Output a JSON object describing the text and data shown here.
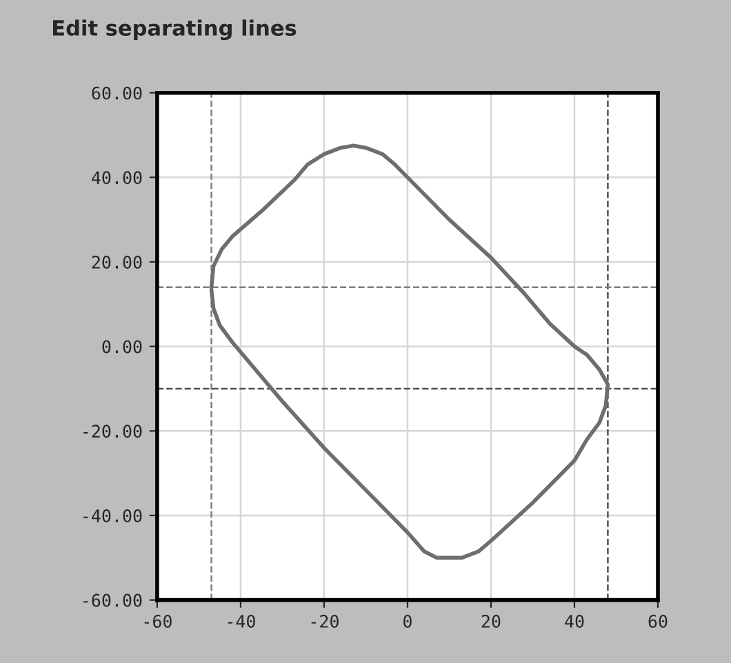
{
  "chart_data": {
    "type": "line",
    "title": "Edit separating lines",
    "series": [
      {
        "color": "#6e6e6e",
        "x": [
          -47,
          -46.5,
          -44.5,
          -42,
          -35,
          -27,
          -24,
          -20,
          -16,
          -13,
          -10,
          -6,
          -3,
          0,
          10,
          20,
          28,
          34,
          40,
          43,
          46,
          48,
          47.5,
          46,
          43,
          40,
          30,
          20,
          17,
          13,
          7,
          4,
          0,
          -10,
          -20,
          -30,
          -36,
          -42,
          -45,
          -46.5,
          -47
        ],
        "values": [
          14,
          19,
          23,
          26,
          32,
          39.5,
          43,
          45.5,
          47,
          47.5,
          47,
          45.5,
          43,
          40,
          30,
          21,
          12.5,
          5.5,
          0,
          -2,
          -5.5,
          -9,
          -14,
          -18,
          -22,
          -27,
          -37,
          -46,
          -48.5,
          -50,
          -50,
          -48.5,
          -44,
          -34,
          -24,
          -13,
          -6,
          1,
          5,
          9,
          13.5
        ]
      }
    ],
    "xlim": [
      -60,
      60
    ],
    "xticks": [
      -60,
      -40,
      -20,
      0,
      20,
      40,
      60
    ],
    "ylim": [
      -60,
      60
    ],
    "yticks": [
      {
        "value": -60,
        "label": "-60.00"
      },
      {
        "value": -40,
        "label": "-40.00"
      },
      {
        "value": -20,
        "label": "-20.00"
      },
      {
        "value": 0,
        "label": "0.00"
      },
      {
        "value": 20,
        "label": "20.00"
      },
      {
        "value": 40,
        "label": "40.00"
      },
      {
        "value": 60,
        "label": "60.00"
      }
    ],
    "ref_lines": [
      {
        "axis": "x",
        "value": -47,
        "color": "#808080",
        "line_style": "dashed"
      },
      {
        "axis": "x",
        "value": 48,
        "color": "#505050",
        "line_style": "dashed"
      },
      {
        "axis": "y",
        "value": 14,
        "color": "#808080",
        "line_style": "dashed"
      },
      {
        "axis": "y",
        "value": -10,
        "color": "#505050",
        "line_style": "dashed"
      }
    ],
    "grid": true,
    "line_style": "solid",
    "marker": "none"
  }
}
